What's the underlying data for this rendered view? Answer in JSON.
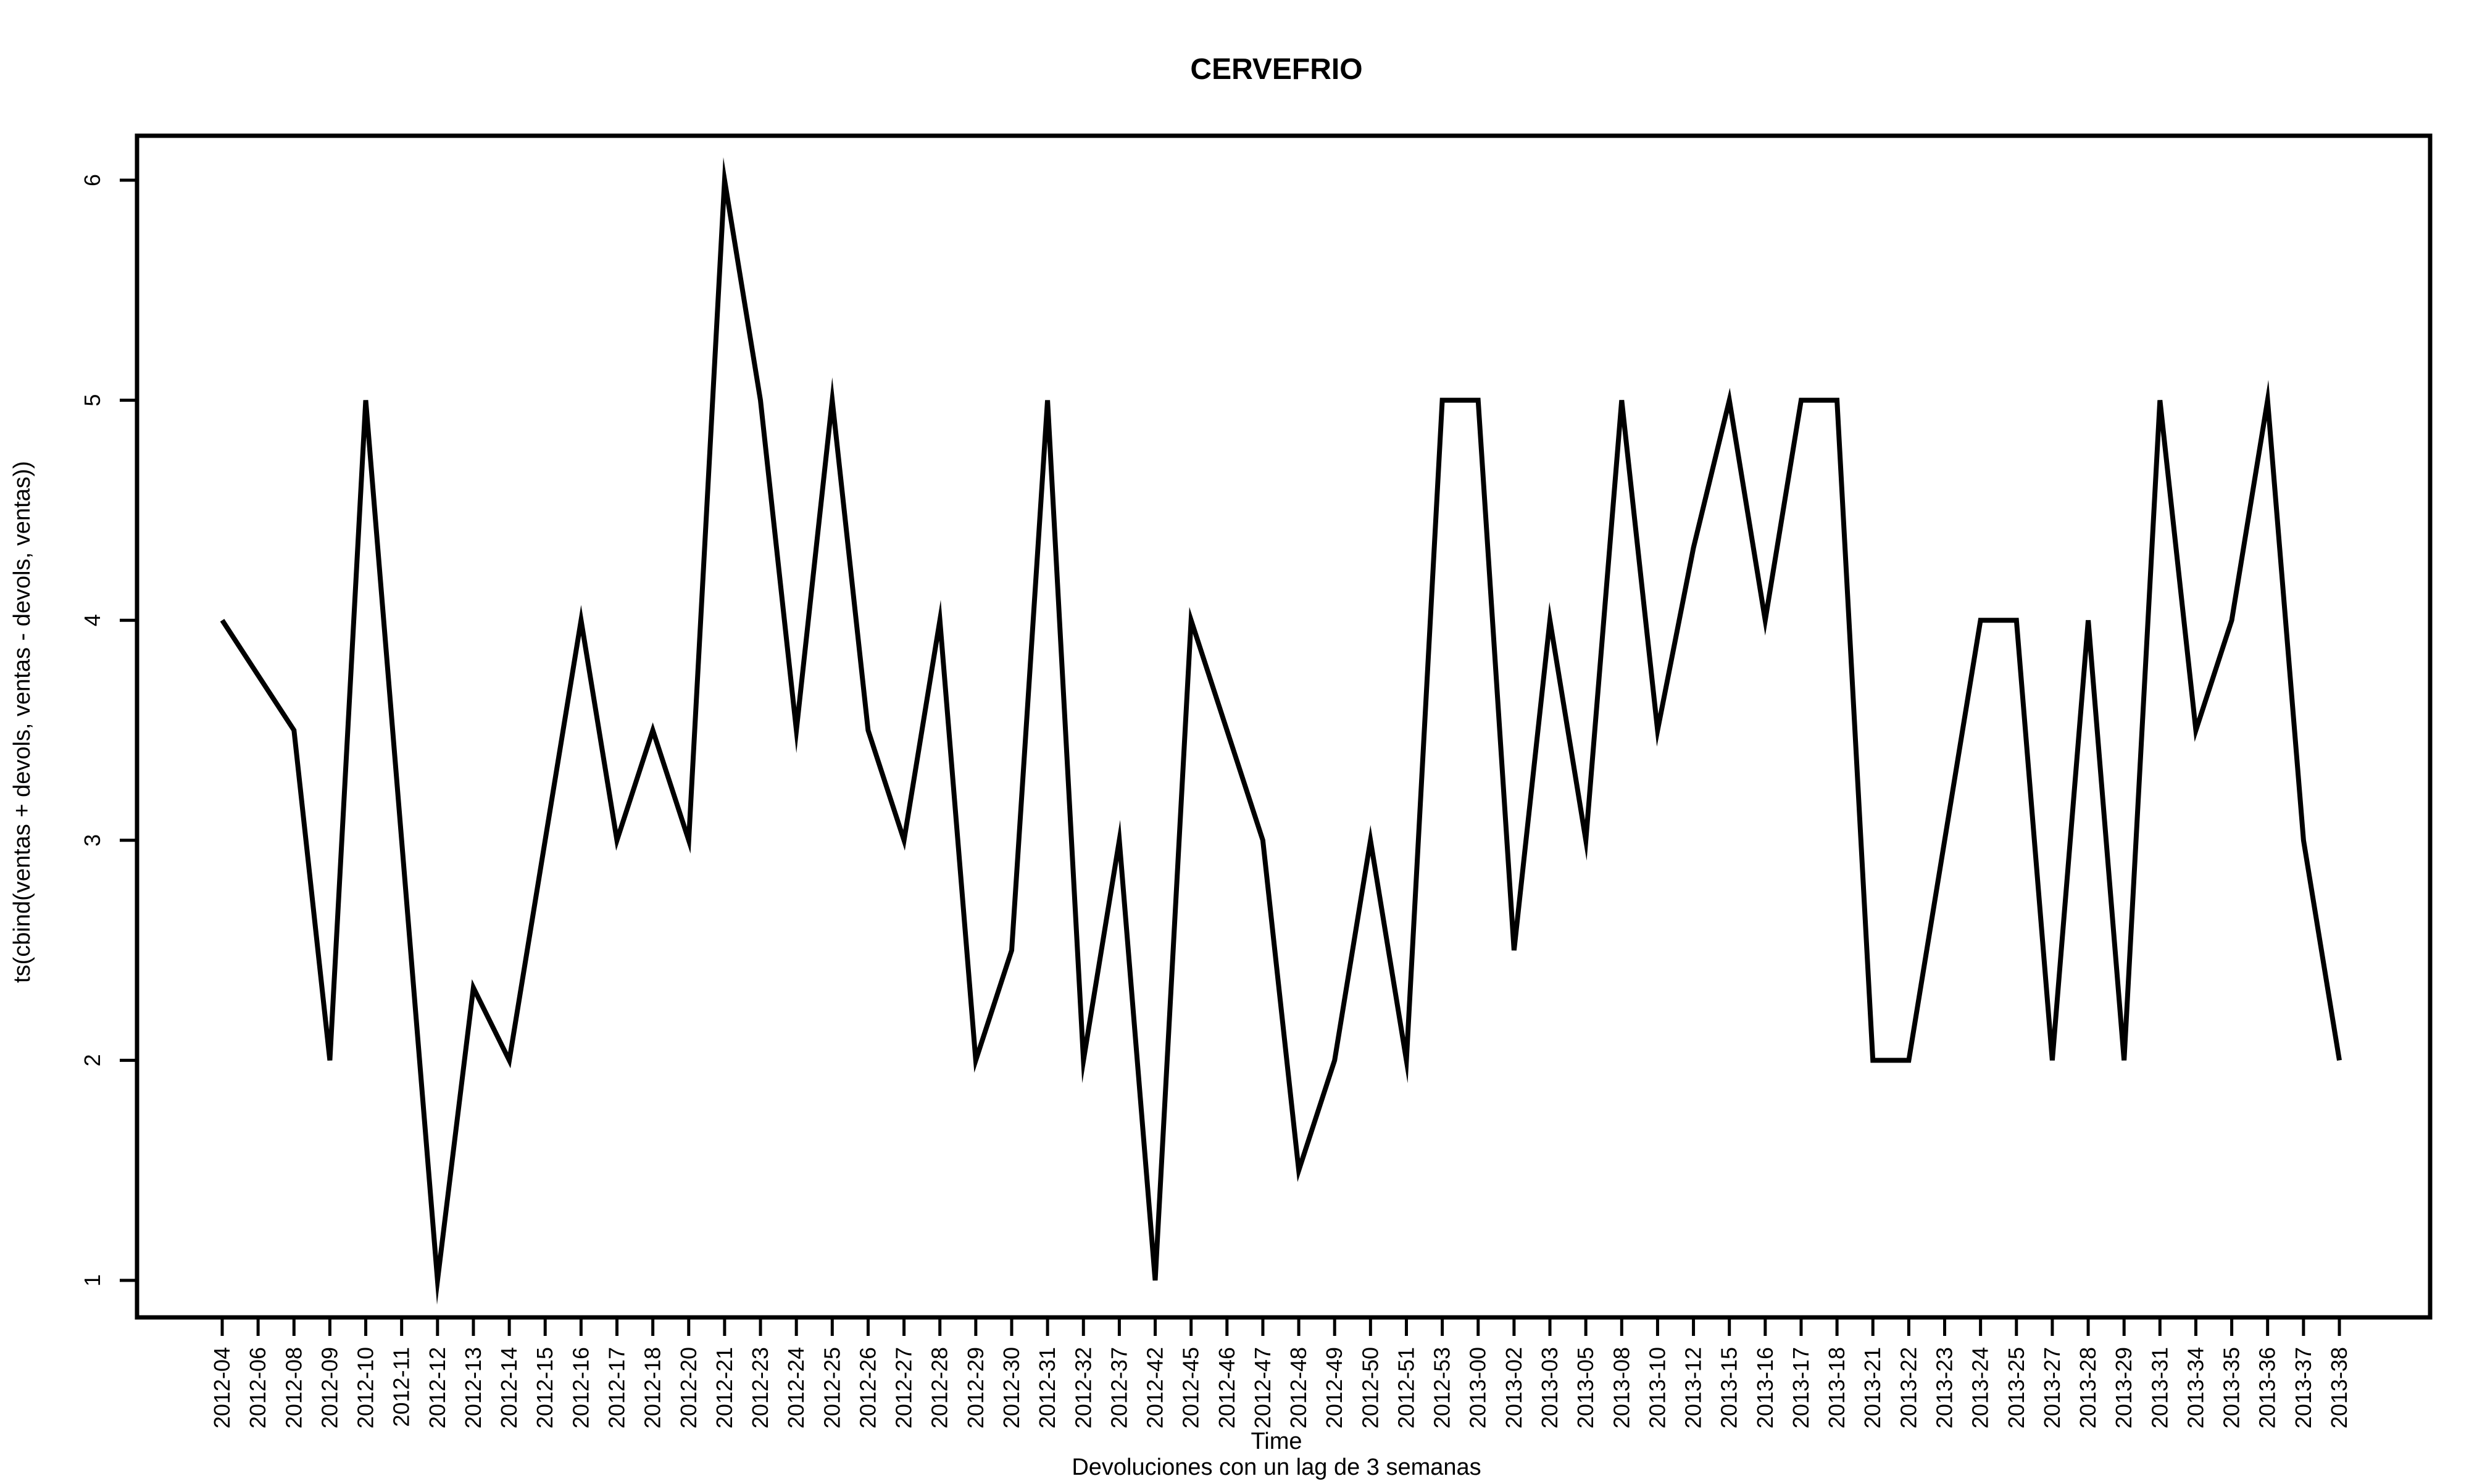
{
  "chart_data": {
    "type": "line",
    "title": "CERVEFRIO",
    "xlabel": "Time",
    "ylabel": "ts(cbind(ventas + devols, ventas - devols, ventas))",
    "subtitle": "Devoluciones con un lag de 3 semanas",
    "ylim": [
      0.8,
      6.2
    ],
    "yticks": [
      1,
      2,
      3,
      4,
      5,
      6
    ],
    "grid": false,
    "x": [
      "2012-04",
      "2012-06",
      "2012-08",
      "2012-09",
      "2012-10",
      "2012-11",
      "2012-12",
      "2012-13",
      "2012-14",
      "2012-15",
      "2012-16",
      "2012-17",
      "2012-18",
      "2012-20",
      "2012-21",
      "2012-23",
      "2012-24",
      "2012-25",
      "2012-26",
      "2012-27",
      "2012-28",
      "2012-29",
      "2012-30",
      "2012-31",
      "2012-32",
      "2012-37",
      "2012-42",
      "2012-45",
      "2012-46",
      "2012-47",
      "2012-48",
      "2012-49",
      "2012-50",
      "2012-51",
      "2012-53",
      "2013-00",
      "2013-02",
      "2013-03",
      "2013-05",
      "2013-08",
      "2013-10",
      "2013-12",
      "2013-15",
      "2013-16",
      "2013-17",
      "2013-18",
      "2013-21",
      "2013-22",
      "2013-23",
      "2013-24",
      "2013-25",
      "2013-27",
      "2013-28",
      "2013-29",
      "2013-31",
      "2013-34",
      "2013-35",
      "2013-36",
      "2013-37",
      "2013-38"
    ],
    "series": [
      {
        "values": [
          4,
          3.75,
          3.5,
          2,
          5,
          3,
          1,
          2.33,
          2,
          3,
          4,
          3,
          3.5,
          3,
          6,
          5,
          3.5,
          5,
          3.5,
          3,
          4,
          2,
          2.5,
          5,
          2,
          3,
          1,
          4,
          3.5,
          3,
          1.5,
          2,
          3,
          2,
          5,
          5,
          2.5,
          4,
          3,
          5,
          3.5,
          4.33,
          5,
          4,
          5,
          5,
          2,
          2,
          3,
          4,
          4,
          2,
          4,
          2,
          5,
          3.5,
          4,
          5,
          3,
          2
        ],
        "color": "#000000"
      }
    ]
  }
}
